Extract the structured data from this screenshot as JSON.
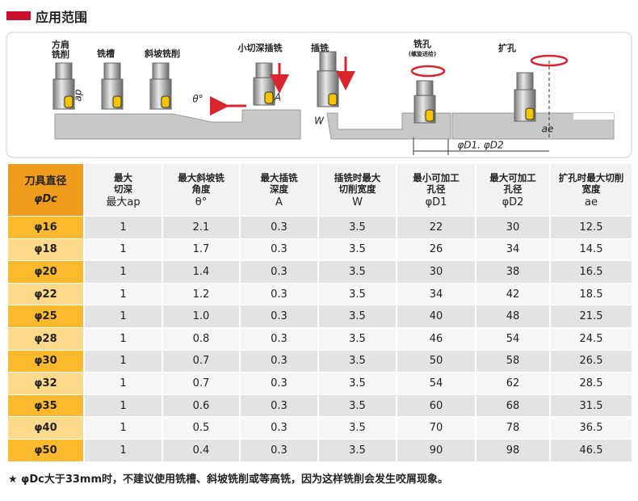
{
  "header": {
    "title": "应用范围"
  },
  "diagram": {
    "labels": [
      [
        "方肩",
        "铣削"
      ],
      [
        "铣槽"
      ],
      [
        "斜坡铣削"
      ],
      [
        "小切深插铣"
      ],
      [
        "插铣"
      ],
      [
        "铣孔",
        "(螺旋进给)"
      ],
      [
        "扩孔"
      ]
    ],
    "dimensions": {
      "ap": "ap",
      "theta": "θ°",
      "a": "A",
      "w": "W",
      "d": "φD1. φD2",
      "ae": "ae"
    }
  },
  "table": {
    "header": [
      [
        "刀具直径",
        "φDc"
      ],
      [
        "最大",
        "切深",
        "最大ap"
      ],
      [
        "最大斜坡铣",
        "角度",
        "θ°"
      ],
      [
        "最大插铣",
        "深度",
        "A"
      ],
      [
        "插铣时最大",
        "切削宽度",
        "W"
      ],
      [
        "最小可加工",
        "孔径",
        "φD1"
      ],
      [
        "最大可加工",
        "孔径",
        "φD2"
      ],
      [
        "扩孔时最大切削",
        "宽度",
        "ae"
      ]
    ],
    "rows": [
      [
        "φ16",
        "1",
        "2.1",
        "0.3",
        "3.5",
        "22",
        "30",
        "12.5"
      ],
      [
        "φ18",
        "1",
        "1.7",
        "0.3",
        "3.5",
        "26",
        "34",
        "14.5"
      ],
      [
        "φ20",
        "1",
        "1.4",
        "0.3",
        "3.5",
        "30",
        "38",
        "16.5"
      ],
      [
        "φ22",
        "1",
        "1.2",
        "0.3",
        "3.5",
        "34",
        "42",
        "18.5"
      ],
      [
        "φ25",
        "1",
        "1.0",
        "0.3",
        "3.5",
        "40",
        "48",
        "21.5"
      ],
      [
        "φ28",
        "1",
        "0.8",
        "0.3",
        "3.5",
        "46",
        "54",
        "24.5"
      ],
      [
        "φ30",
        "1",
        "0.7",
        "0.3",
        "3.5",
        "50",
        "58",
        "26.5"
      ],
      [
        "φ32",
        "1",
        "0.7",
        "0.3",
        "3.5",
        "54",
        "62",
        "28.5"
      ],
      [
        "φ35",
        "1",
        "0.6",
        "0.3",
        "3.5",
        "60",
        "68",
        "31.5"
      ],
      [
        "φ40",
        "1",
        "0.5",
        "0.3",
        "3.5",
        "70",
        "78",
        "36.5"
      ],
      [
        "φ50",
        "1",
        "0.4",
        "0.3",
        "3.5",
        "90",
        "98",
        "46.5"
      ]
    ]
  },
  "footnote": "★ φDc大于33mm时，不建议使用铣槽、斜坡铣削或等高铣，因为这样铣削会发生咬屑现象。"
}
